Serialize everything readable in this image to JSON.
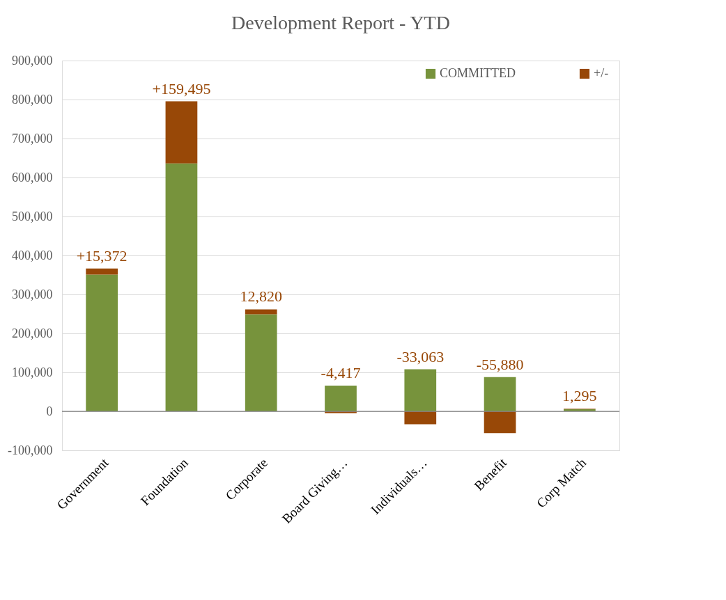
{
  "chart_data": {
    "type": "bar",
    "title": "Development Report - YTD",
    "stacked": true,
    "categories": [
      "Government",
      "Foundation",
      "Corporate",
      "Board Giving…",
      "Individuals…",
      "Benefit",
      "Corp Match"
    ],
    "series": [
      {
        "name": "COMMITTED",
        "color": "#77933c",
        "values": [
          351000,
          636000,
          249000,
          66000,
          108000,
          88000,
          6000
        ]
      },
      {
        "name": "+/-",
        "color": "#984807",
        "values": [
          15372,
          159495,
          12820,
          -4417,
          -33063,
          -55880,
          1295
        ],
        "value_labels": [
          "+15,372",
          "+159,495",
          "12,820",
          "-4,417",
          "-33,063",
          "-55,880",
          "1,295"
        ]
      }
    ],
    "ylim": [
      -100000,
      900000
    ],
    "yticks": [
      {
        "value": -100000,
        "label": "-100,000"
      },
      0,
      {
        "value": 100000,
        "label": "100,000"
      },
      {
        "value": 200000,
        "label": "200,000"
      },
      {
        "value": 300000,
        "label": "300,000"
      },
      {
        "value": 400000,
        "label": "400,000"
      },
      {
        "value": 500000,
        "label": "500,000"
      },
      {
        "value": 600000,
        "label": "600,000"
      },
      {
        "value": 700000,
        "label": "700,000"
      },
      {
        "value": 800000,
        "label": "800,000"
      },
      {
        "value": 900000,
        "label": "900,000"
      }
    ],
    "grid": "y",
    "legend": "top right"
  }
}
